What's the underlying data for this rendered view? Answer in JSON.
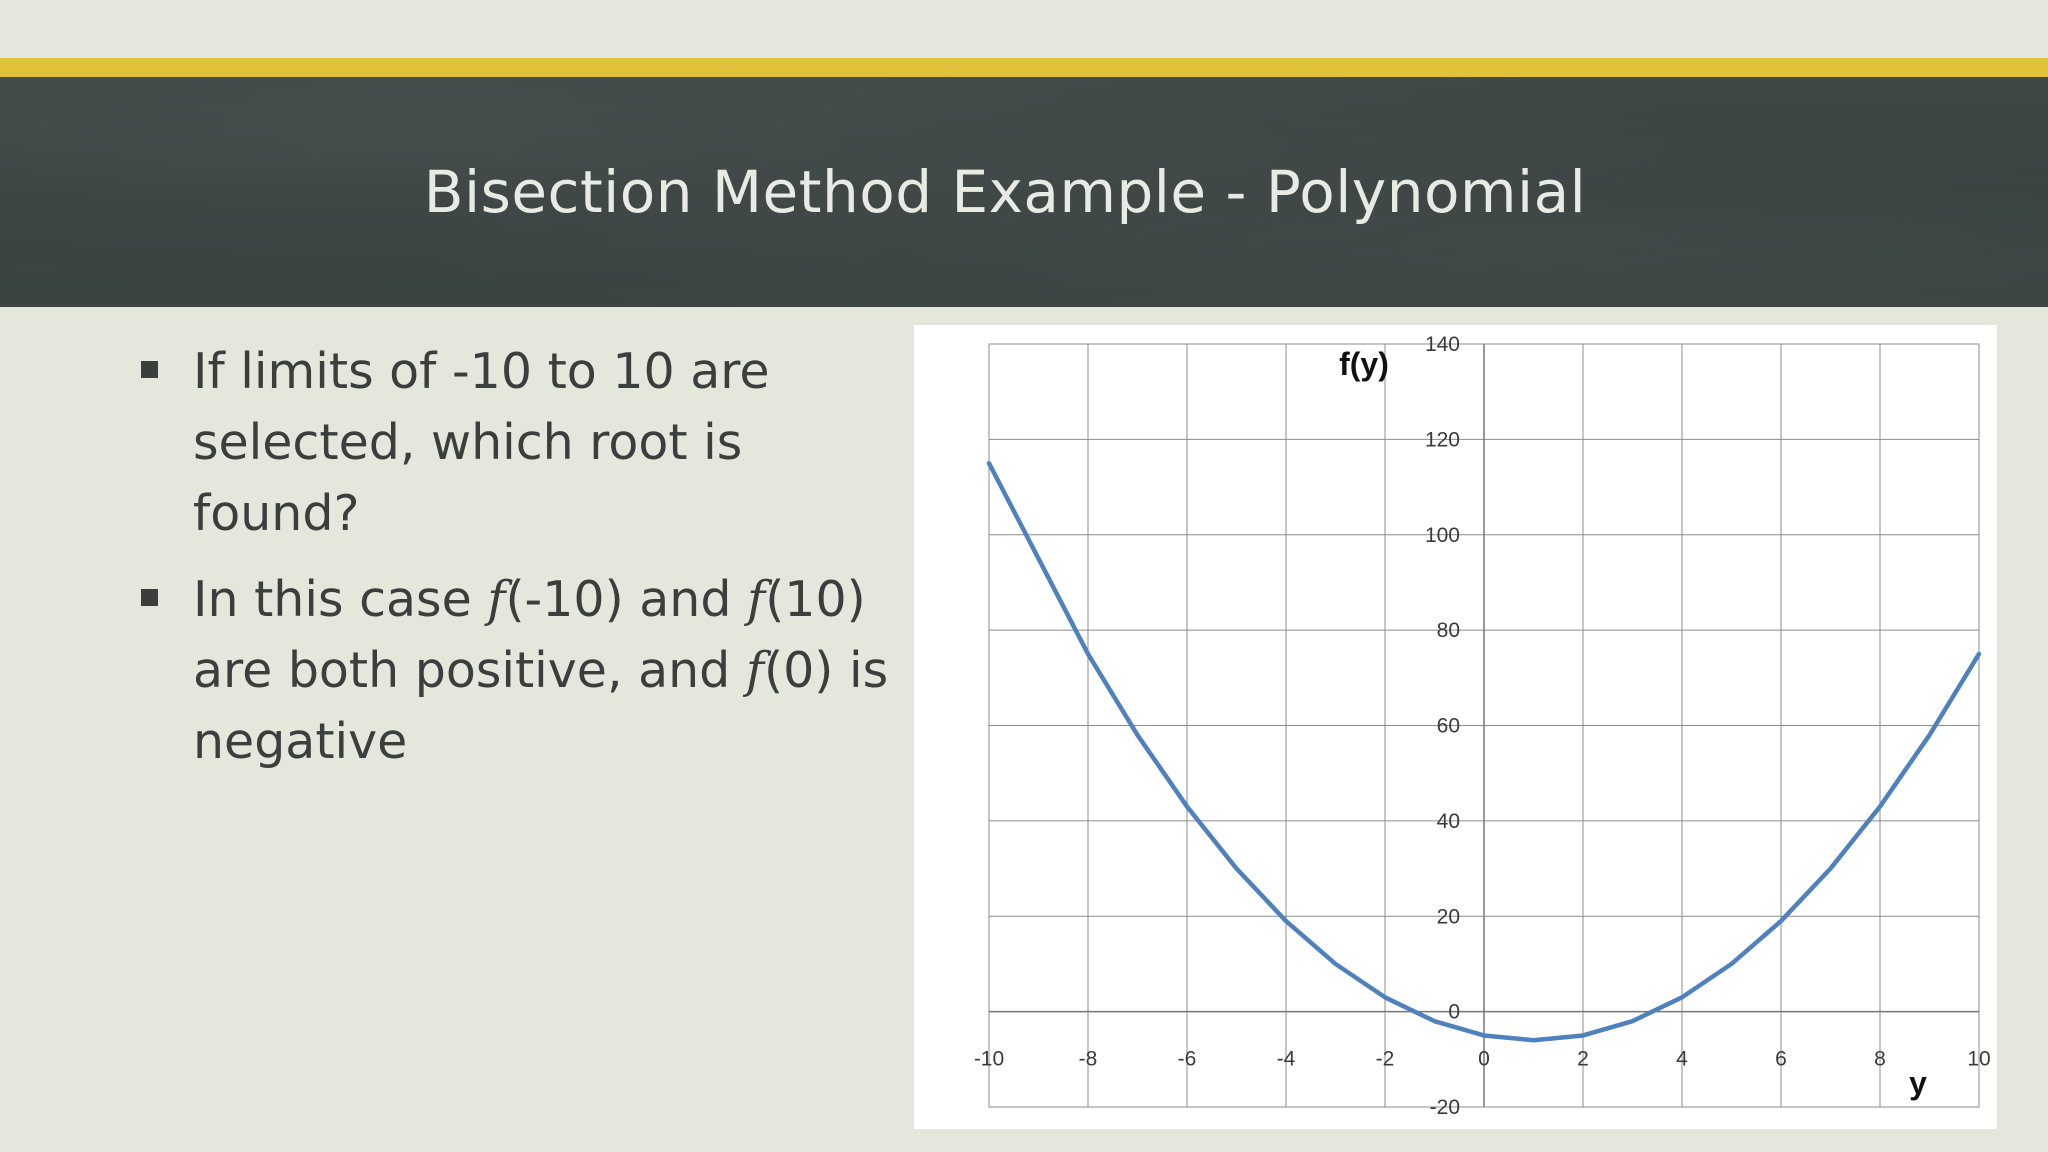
{
  "slide": {
    "title": "Bisection Method Example - Polynomial",
    "bullets": [
      {
        "parts": [
          "If limits of -10 to 10 are selected, which root is found?"
        ]
      },
      {
        "parts": [
          "In this case ",
          "f",
          "(-10) and ",
          "f",
          "(10) are both positive, and ",
          "f",
          "(0) is negative"
        ]
      }
    ]
  },
  "colors": {
    "accent_bar": "#dfc23a",
    "header_band": "#3c4543",
    "background": "#e5e6dc",
    "curve": "#4f81bd"
  },
  "chart_data": {
    "type": "line",
    "xlabel": "y",
    "ylabel": "f(y)",
    "xlim": [
      -10,
      10
    ],
    "ylim": [
      -20,
      140
    ],
    "x_ticks": [
      -10,
      -8,
      -6,
      -4,
      -2,
      0,
      2,
      4,
      6,
      8,
      10
    ],
    "y_ticks": [
      -20,
      0,
      20,
      40,
      60,
      80,
      100,
      120,
      140
    ],
    "grid": true,
    "series": [
      {
        "x": [
          -10,
          -9,
          -8,
          -7,
          -6,
          -5,
          -4,
          -3,
          -2,
          -1,
          0,
          1,
          2,
          3,
          4,
          5,
          6,
          7,
          8,
          9,
          10
        ],
        "y": [
          115,
          95,
          75,
          58,
          43,
          30,
          19,
          10,
          3,
          -2,
          -5,
          -6,
          -5,
          -2,
          3,
          10,
          19,
          30,
          43,
          58,
          75
        ]
      }
    ]
  }
}
